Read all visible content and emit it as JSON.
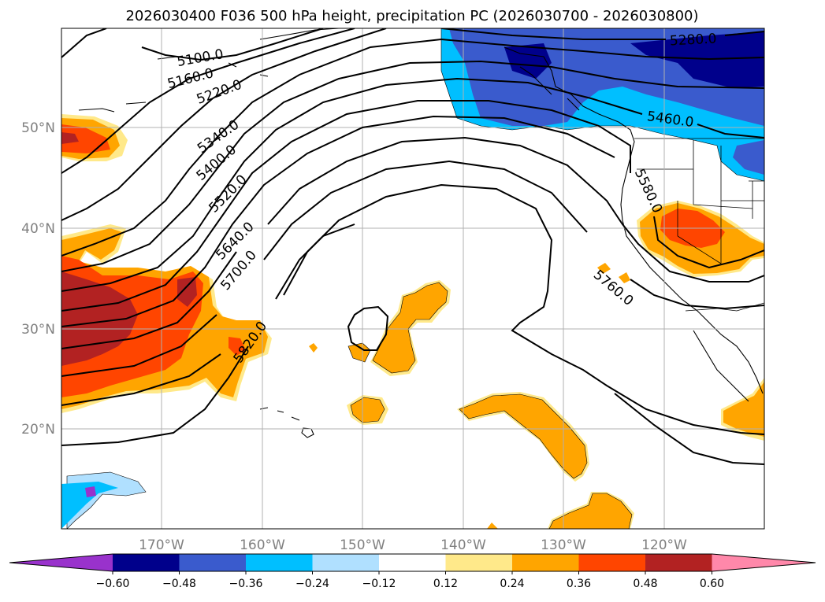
{
  "title": "2026030400 F036 500 hPa height, precipitation PC (2026030700 - 2026030800)",
  "lon_ticks": [
    "170°W",
    "160°W",
    "150°W",
    "140°W",
    "130°W",
    "120°W"
  ],
  "lat_ticks": [
    "50°N",
    "40°N",
    "30°N",
    "20°N"
  ],
  "colorbar": {
    "tick_labels": [
      "−0.60",
      "−0.48",
      "−0.36",
      "−0.24",
      "−0.12",
      "0.12",
      "0.24",
      "0.36",
      "0.48",
      "0.60"
    ],
    "colors": [
      "#9932cc",
      "#00008b",
      "#3a5bcd",
      "#00bfff",
      "#b0e0ff",
      "#ffffff",
      "#ffe98a",
      "#ffa500",
      "#ff4500",
      "#b22222",
      "#ff88aa"
    ]
  },
  "contour_labels": [
    "5100.0",
    "5160.0",
    "5220.0",
    "5280.0",
    "5340.0",
    "5400.0",
    "5460.0",
    "5520.0",
    "5580.0",
    "5640.0",
    "5700.0",
    "5760.0",
    "5820.0"
  ],
  "colors": {
    "negative_purple": "#9932cc",
    "navy": "#00008b",
    "royal_blue": "#3a5bcd",
    "sky": "#00bfff",
    "pale_blue": "#b0e0ff",
    "pale_yellow": "#ffe98a",
    "orange": "#ffa500",
    "orange_red": "#ff4500",
    "firebrick": "#b22222",
    "pink": "#ff88aa"
  }
}
